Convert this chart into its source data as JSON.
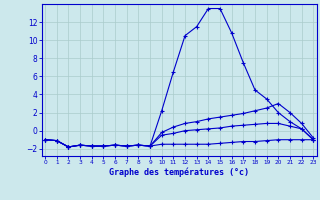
{
  "xlabel": "Graphe des températures (°c)",
  "background_color": "#cce8ec",
  "grid_color": "#aacccc",
  "line_color": "#0000cc",
  "x": [
    0,
    1,
    2,
    3,
    4,
    5,
    6,
    7,
    8,
    9,
    10,
    11,
    12,
    13,
    14,
    15,
    16,
    17,
    18,
    19,
    20,
    21,
    22,
    23
  ],
  "line_peak": [
    -1.0,
    -1.1,
    -1.8,
    -1.6,
    -1.7,
    -1.7,
    -1.6,
    -1.7,
    -1.6,
    -1.7,
    2.2,
    6.5,
    10.5,
    11.5,
    13.5,
    13.5,
    10.8,
    7.5,
    4.5,
    3.5,
    2.0,
    1.0,
    0.2,
    -1.0
  ],
  "line_mid1": [
    -1.0,
    -1.1,
    -1.8,
    -1.6,
    -1.7,
    -1.7,
    -1.6,
    -1.7,
    -1.6,
    -1.7,
    -0.2,
    0.4,
    0.8,
    1.0,
    1.3,
    1.5,
    1.7,
    1.9,
    2.2,
    2.5,
    3.0,
    2.0,
    0.8,
    -0.8
  ],
  "line_mid2": [
    -1.0,
    -1.1,
    -1.8,
    -1.6,
    -1.7,
    -1.7,
    -1.6,
    -1.7,
    -1.6,
    -1.7,
    -0.5,
    -0.3,
    0.0,
    0.1,
    0.2,
    0.3,
    0.5,
    0.6,
    0.7,
    0.8,
    0.8,
    0.5,
    0.2,
    -1.0
  ],
  "line_bot": [
    -1.0,
    -1.1,
    -1.8,
    -1.6,
    -1.7,
    -1.7,
    -1.6,
    -1.7,
    -1.6,
    -1.7,
    -1.5,
    -1.5,
    -1.5,
    -1.5,
    -1.5,
    -1.4,
    -1.3,
    -1.2,
    -1.2,
    -1.1,
    -1.0,
    -1.0,
    -1.0,
    -1.0
  ],
  "ylim": [
    -2.8,
    14.0
  ],
  "xlim": [
    -0.3,
    23.3
  ],
  "yticks": [
    -2,
    0,
    2,
    4,
    6,
    8,
    10,
    12
  ],
  "xticks": [
    0,
    1,
    2,
    3,
    4,
    5,
    6,
    7,
    8,
    9,
    10,
    11,
    12,
    13,
    14,
    15,
    16,
    17,
    18,
    19,
    20,
    21,
    22,
    23
  ]
}
